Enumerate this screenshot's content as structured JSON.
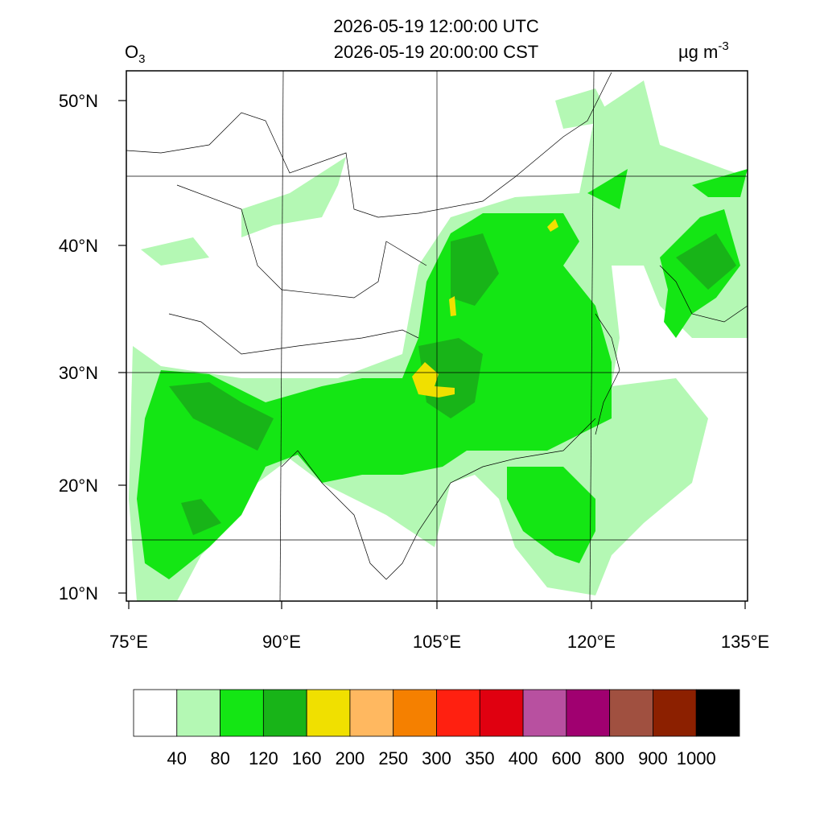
{
  "header": {
    "title_utc": "2026-05-19 12:00:00 UTC",
    "title_cst": "2026-05-19 20:00:00 CST",
    "variable": "O",
    "variable_sub": "3",
    "unit": "µg m",
    "unit_exp": "-3"
  },
  "map": {
    "lat_labels": [
      "50°N",
      "40°N",
      "30°N",
      "20°N",
      "10°N"
    ],
    "lon_labels": [
      "75°E",
      "90°E",
      "105°E",
      "120°E",
      "135°E"
    ]
  },
  "colorbar": {
    "colors": [
      "#ffffff",
      "#b4f8b4",
      "#14e614",
      "#18b418",
      "#f0e000",
      "#ffb860",
      "#f58000",
      "#ff2010",
      "#e00010",
      "#b850a0",
      "#a00070",
      "#a05040",
      "#8c2000",
      "#000000"
    ],
    "levels": [
      "40",
      "80",
      "120",
      "160",
      "200",
      "250",
      "300",
      "350",
      "400",
      "600",
      "800",
      "900",
      "1000"
    ]
  }
}
